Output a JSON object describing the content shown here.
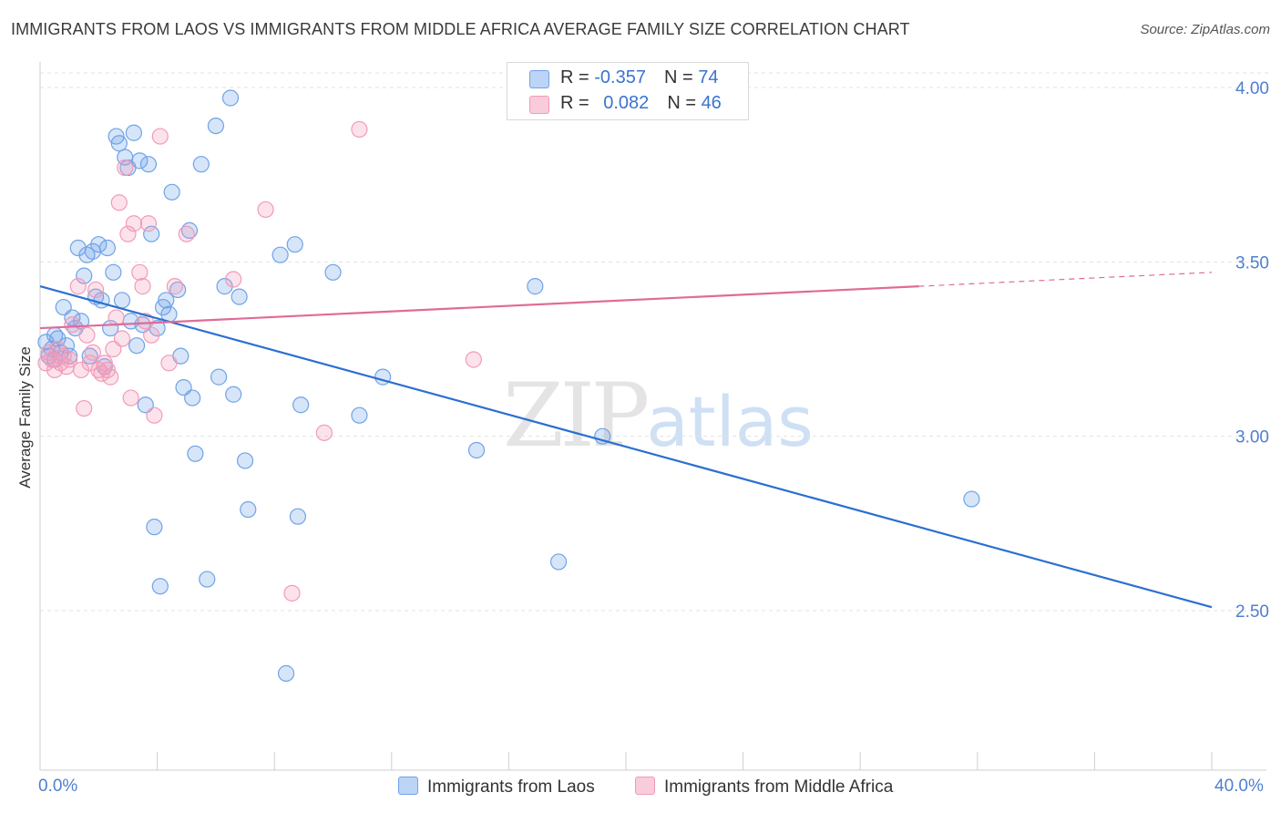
{
  "header": {
    "title": "IMMIGRANTS FROM LAOS VS IMMIGRANTS FROM MIDDLE AFRICA AVERAGE FAMILY SIZE CORRELATION CHART",
    "source": "Source: ZipAtlas.com"
  },
  "legend_top": {
    "row1": {
      "r_label": "R = ",
      "r_value": "-0.357",
      "n_label": "N = ",
      "n_value": "74"
    },
    "row2": {
      "r_label": "R = ",
      "r_value": "0.082",
      "n_label": "N = ",
      "n_value": "46"
    }
  },
  "watermark": {
    "zip": "ZIP",
    "atlas": "atlas"
  },
  "x_axis": {
    "min_label": "0.0%",
    "max_label": "40.0%"
  },
  "chart_data": {
    "type": "scatter",
    "title": "IMMIGRANTS FROM LAOS VS IMMIGRANTS FROM MIDDLE AFRICA AVERAGE FAMILY SIZE CORRELATION CHART",
    "xlabel": "",
    "ylabel": "Average Family Size",
    "xlim": [
      0,
      40
    ],
    "ylim": [
      2.05,
      4.08
    ],
    "yticks": [
      2.5,
      3.0,
      3.5,
      4.0
    ],
    "ytick_labels": [
      "2.50",
      "3.00",
      "3.50",
      "4.00"
    ],
    "grid": true,
    "legend_position": "top-center",
    "series": [
      {
        "name": "Immigrants from Laos",
        "color": "#6fa3e8",
        "line_color": "#2b6fd1",
        "r": -0.357,
        "n": 74,
        "trend": {
          "x0": 0,
          "y0": 3.43,
          "x1": 40,
          "y1": 2.51
        },
        "points": [
          [
            0.2,
            3.27
          ],
          [
            0.3,
            3.23
          ],
          [
            0.4,
            3.25
          ],
          [
            0.5,
            3.22
          ],
          [
            0.6,
            3.28
          ],
          [
            0.7,
            3.24
          ],
          [
            0.8,
            3.37
          ],
          [
            0.9,
            3.26
          ],
          [
            1.0,
            3.23
          ],
          [
            1.1,
            3.34
          ],
          [
            1.2,
            3.31
          ],
          [
            1.3,
            3.54
          ],
          [
            1.4,
            3.33
          ],
          [
            1.5,
            3.46
          ],
          [
            1.6,
            3.52
          ],
          [
            1.7,
            3.23
          ],
          [
            1.8,
            3.53
          ],
          [
            1.9,
            3.4
          ],
          [
            2.0,
            3.55
          ],
          [
            2.1,
            3.39
          ],
          [
            2.2,
            3.2
          ],
          [
            2.3,
            3.54
          ],
          [
            2.4,
            3.31
          ],
          [
            2.5,
            3.47
          ],
          [
            2.6,
            3.86
          ],
          [
            2.7,
            3.84
          ],
          [
            2.8,
            3.39
          ],
          [
            2.9,
            3.8
          ],
          [
            3.0,
            3.77
          ],
          [
            3.1,
            3.33
          ],
          [
            3.2,
            3.87
          ],
          [
            3.3,
            3.26
          ],
          [
            3.4,
            3.79
          ],
          [
            3.5,
            3.32
          ],
          [
            3.6,
            3.09
          ],
          [
            3.7,
            3.78
          ],
          [
            3.8,
            3.58
          ],
          [
            3.9,
            2.74
          ],
          [
            4.0,
            3.31
          ],
          [
            4.1,
            2.57
          ],
          [
            4.2,
            3.37
          ],
          [
            4.3,
            3.39
          ],
          [
            4.4,
            3.35
          ],
          [
            4.5,
            3.7
          ],
          [
            4.7,
            3.42
          ],
          [
            4.8,
            3.23
          ],
          [
            4.9,
            3.14
          ],
          [
            5.1,
            3.59
          ],
          [
            5.2,
            3.11
          ],
          [
            5.3,
            2.95
          ],
          [
            5.5,
            3.78
          ],
          [
            5.7,
            2.59
          ],
          [
            6.0,
            3.89
          ],
          [
            6.1,
            3.17
          ],
          [
            6.3,
            3.43
          ],
          [
            6.5,
            3.97
          ],
          [
            6.6,
            3.12
          ],
          [
            6.8,
            3.4
          ],
          [
            7.0,
            2.93
          ],
          [
            7.1,
            2.79
          ],
          [
            8.2,
            3.52
          ],
          [
            8.4,
            2.32
          ],
          [
            8.7,
            3.55
          ],
          [
            8.8,
            2.77
          ],
          [
            8.9,
            3.09
          ],
          [
            10.0,
            3.47
          ],
          [
            10.9,
            3.06
          ],
          [
            11.7,
            3.17
          ],
          [
            14.9,
            2.96
          ],
          [
            16.9,
            3.43
          ],
          [
            17.7,
            2.64
          ],
          [
            19.2,
            3.0
          ],
          [
            31.8,
            2.82
          ],
          [
            0.5,
            3.29
          ]
        ]
      },
      {
        "name": "Immigrants from Middle Africa",
        "color": "#f39ab8",
        "line_color": "#e06b97",
        "r": 0.082,
        "n": 46,
        "trend": {
          "x0": 0,
          "y0": 3.31,
          "x1": 30,
          "y1": 3.43,
          "dash_x1": 40,
          "dash_y1": 3.47
        },
        "points": [
          [
            0.2,
            3.21
          ],
          [
            0.3,
            3.24
          ],
          [
            0.4,
            3.22
          ],
          [
            0.5,
            3.19
          ],
          [
            0.6,
            3.25
          ],
          [
            0.7,
            3.21
          ],
          [
            0.8,
            3.23
          ],
          [
            0.9,
            3.2
          ],
          [
            1.0,
            3.22
          ],
          [
            1.1,
            3.32
          ],
          [
            1.3,
            3.43
          ],
          [
            1.4,
            3.19
          ],
          [
            1.5,
            3.08
          ],
          [
            1.6,
            3.29
          ],
          [
            1.7,
            3.21
          ],
          [
            1.8,
            3.24
          ],
          [
            1.9,
            3.42
          ],
          [
            2.0,
            3.19
          ],
          [
            2.1,
            3.18
          ],
          [
            2.2,
            3.21
          ],
          [
            2.3,
            3.19
          ],
          [
            2.4,
            3.17
          ],
          [
            2.5,
            3.25
          ],
          [
            2.6,
            3.34
          ],
          [
            2.7,
            3.67
          ],
          [
            2.8,
            3.28
          ],
          [
            2.9,
            3.77
          ],
          [
            3.0,
            3.58
          ],
          [
            3.1,
            3.11
          ],
          [
            3.2,
            3.61
          ],
          [
            3.4,
            3.47
          ],
          [
            3.5,
            3.43
          ],
          [
            3.6,
            3.33
          ],
          [
            3.7,
            3.61
          ],
          [
            3.8,
            3.29
          ],
          [
            3.9,
            3.06
          ],
          [
            4.1,
            3.86
          ],
          [
            4.4,
            3.21
          ],
          [
            4.6,
            3.43
          ],
          [
            5.0,
            3.58
          ],
          [
            6.6,
            3.45
          ],
          [
            7.7,
            3.65
          ],
          [
            8.6,
            2.55
          ],
          [
            9.7,
            3.01
          ],
          [
            10.9,
            3.88
          ],
          [
            14.8,
            3.22
          ]
        ]
      }
    ]
  }
}
